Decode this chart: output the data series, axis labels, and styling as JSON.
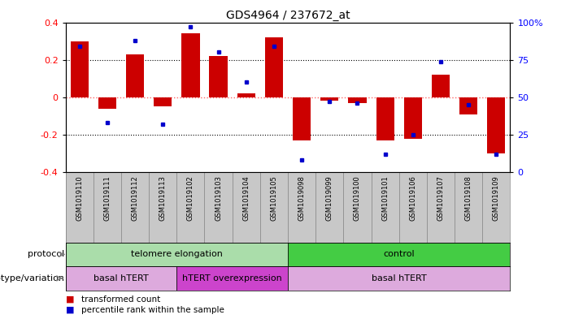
{
  "title": "GDS4964 / 237672_at",
  "samples": [
    "GSM1019110",
    "GSM1019111",
    "GSM1019112",
    "GSM1019113",
    "GSM1019102",
    "GSM1019103",
    "GSM1019104",
    "GSM1019105",
    "GSM1019098",
    "GSM1019099",
    "GSM1019100",
    "GSM1019101",
    "GSM1019106",
    "GSM1019107",
    "GSM1019108",
    "GSM1019109"
  ],
  "transformed_count": [
    0.3,
    -0.06,
    0.23,
    -0.05,
    0.34,
    0.22,
    0.02,
    0.32,
    -0.23,
    -0.02,
    -0.03,
    -0.23,
    -0.22,
    0.12,
    -0.09,
    -0.3
  ],
  "percentile_rank": [
    84,
    33,
    88,
    32,
    97,
    80,
    60,
    84,
    8,
    47,
    46,
    12,
    25,
    74,
    45,
    12
  ],
  "ylim": [
    -0.4,
    0.4
  ],
  "yticks_left": [
    -0.4,
    -0.2,
    0.0,
    0.2,
    0.4
  ],
  "yticks_right": [
    0,
    25,
    50,
    75,
    100
  ],
  "protocol_groups": [
    {
      "label": "telomere elongation",
      "start": 0,
      "end": 8,
      "color": "#aaddaa"
    },
    {
      "label": "control",
      "start": 8,
      "end": 16,
      "color": "#44cc44"
    }
  ],
  "genotype_groups": [
    {
      "label": "basal hTERT",
      "start": 0,
      "end": 4,
      "color": "#ddaadd"
    },
    {
      "label": "hTERT overexpression",
      "start": 4,
      "end": 8,
      "color": "#cc44cc"
    },
    {
      "label": "basal hTERT",
      "start": 8,
      "end": 16,
      "color": "#ddaadd"
    }
  ],
  "bar_color": "#CC0000",
  "dot_color": "#0000CC",
  "hline_color": "#FF6666",
  "dotline_color": "#000000",
  "sample_bg": "#C8C8C8",
  "sample_border": "#888888"
}
